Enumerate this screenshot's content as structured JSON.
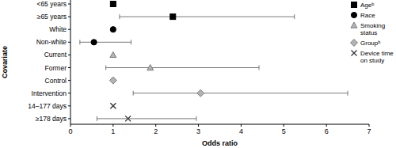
{
  "chart_data": {
    "type": "scatter",
    "orientation": "horizontal",
    "x_label": "Odds ratio",
    "y_label": "Covariate",
    "categories": [
      "<65 years",
      "≥65 years",
      "White",
      "Non-white",
      "Current",
      "Former",
      "Control",
      "Intervention",
      "14–177 days",
      "≥178 days"
    ],
    "xlim": [
      0,
      7
    ],
    "xticks": [
      0,
      1,
      2,
      3,
      4,
      5,
      6,
      7
    ],
    "grid": false,
    "legend": "top-right",
    "series": [
      {
        "name": "Ageᵇ",
        "color": "#000000",
        "marker": "square",
        "values": [
          1,
          2.4,
          null,
          null,
          null,
          null,
          null,
          null,
          null,
          null
        ],
        "ci_lower": [
          null,
          1.15,
          null,
          null,
          null,
          null,
          null,
          null,
          null,
          null
        ],
        "ci_upper": [
          null,
          5.25,
          null,
          null,
          null,
          null,
          null,
          null,
          null,
          null
        ]
      },
      {
        "name": "Race",
        "color": "#000000",
        "marker": "circle",
        "values": [
          null,
          null,
          1,
          0.55,
          null,
          null,
          null,
          null,
          null,
          null
        ],
        "ci_lower": [
          null,
          null,
          null,
          0.22,
          null,
          null,
          null,
          null,
          null,
          null
        ],
        "ci_upper": [
          null,
          null,
          null,
          1.42,
          null,
          null,
          null,
          null,
          null,
          null
        ]
      },
      {
        "name": "Smoking status",
        "color": "#b3b3b3",
        "marker": "triangle",
        "values": [
          null,
          null,
          null,
          null,
          1,
          1.87,
          null,
          null,
          null,
          null
        ],
        "ci_lower": [
          null,
          null,
          null,
          null,
          null,
          0.83,
          null,
          null,
          null,
          null
        ],
        "ci_upper": [
          null,
          null,
          null,
          null,
          null,
          4.42,
          null,
          null,
          null,
          null
        ]
      },
      {
        "name": "Groupᵇ",
        "color": "#b3b3b3",
        "marker": "diamond",
        "values": [
          null,
          null,
          null,
          null,
          null,
          null,
          1,
          3.05,
          null,
          null
        ],
        "ci_lower": [
          null,
          null,
          null,
          null,
          null,
          null,
          null,
          1.47,
          null,
          null
        ],
        "ci_upper": [
          null,
          null,
          null,
          null,
          null,
          null,
          null,
          6.5,
          null,
          null
        ]
      },
      {
        "name": "Device time on study",
        "color": "#333333",
        "marker": "x",
        "values": [
          null,
          null,
          null,
          null,
          null,
          null,
          null,
          null,
          1,
          1.35
        ],
        "ci_lower": [
          null,
          null,
          null,
          null,
          null,
          null,
          null,
          null,
          null,
          0.62
        ],
        "ci_upper": [
          null,
          null,
          null,
          null,
          null,
          null,
          null,
          null,
          null,
          2.95
        ]
      }
    ]
  }
}
